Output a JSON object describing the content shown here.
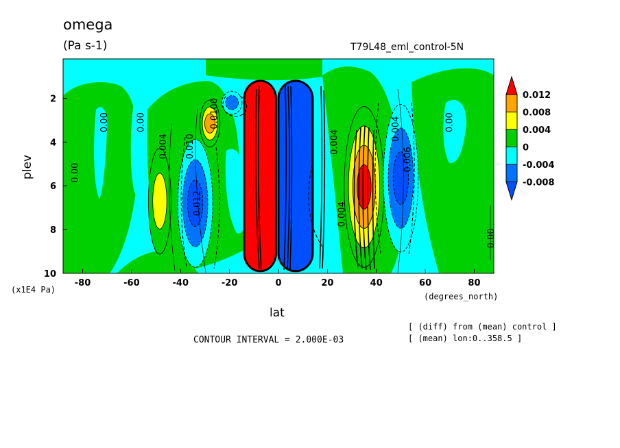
{
  "chart_data": {
    "type": "heatmap",
    "title": "omega",
    "units": "(Pa s-1)",
    "dataset": "T79L48_eml_control-5N",
    "xlabel": "lat",
    "x_unit_label": "(degrees_north)",
    "ylabel": "plev",
    "y_unit_label": "(x1E4 Pa)",
    "xlim": [
      -88,
      88
    ],
    "ylim": [
      10,
      0.2
    ],
    "x_ticks": [
      -80,
      -60,
      -40,
      -20,
      0,
      20,
      40,
      60,
      80
    ],
    "x_tick_labels": [
      "-80",
      "-60",
      "-40",
      "-20",
      "0",
      "20",
      "40",
      "60",
      "80"
    ],
    "y_ticks": [
      2,
      4,
      6,
      8,
      10
    ],
    "y_tick_labels": [
      "2",
      "4",
      "6",
      "8",
      "10"
    ],
    "contour_interval_text": "CONTOUR INTERVAL = 2.000E-03",
    "info_lines": [
      "[ (diff) from (mean) control ]",
      "[ (mean) lon:0..358.5 ]"
    ],
    "colorbar": {
      "labels": [
        "0.012",
        "0.008",
        "0.004",
        "0",
        "-0.004",
        "-0.008"
      ],
      "colors": [
        "#ff0000",
        "#ffa500",
        "#ffff00",
        "#00d000",
        "#00ffff",
        "#0073ff",
        "#0050ff"
      ]
    },
    "contour_labels": [
      {
        "text": "0.00",
        "lat": -83,
        "plev": 5.4,
        "rot": -90
      },
      {
        "text": "0.00",
        "lat": -71,
        "plev": 3.1,
        "rot": -90
      },
      {
        "text": "0.00",
        "lat": -56,
        "plev": 3.1,
        "rot": -90
      },
      {
        "text": "0.004",
        "lat": -47,
        "plev": 4.2,
        "rot": -90
      },
      {
        "text": "0.010",
        "lat": -36,
        "plev": 4.2,
        "rot": -90
      },
      {
        "text": "0.012",
        "lat": -33,
        "plev": 6.8,
        "rot": -90
      },
      {
        "text": "0.0100",
        "lat": -26,
        "plev": 2.7,
        "rot": -90
      },
      {
        "text": "0.004",
        "lat": 23,
        "plev": 4.0,
        "rot": -90
      },
      {
        "text": "0.004",
        "lat": 26,
        "plev": 7.3,
        "rot": -90
      },
      {
        "text": "0.004",
        "lat": 48,
        "plev": 3.4,
        "rot": -90
      },
      {
        "text": "0.006",
        "lat": 53,
        "plev": 4.8,
        "rot": -90
      },
      {
        "text": "0.00",
        "lat": 70,
        "plev": 3.1,
        "rot": -90
      },
      {
        "text": "0.00",
        "lat": 87,
        "plev": 8.4,
        "rot": -90
      }
    ],
    "regions": [
      {
        "lat0": -14,
        "lat1": -1,
        "p0": 1.2,
        "p1": 9.9,
        "level": 0.014,
        "name": "strong ascent band"
      },
      {
        "lat0": 0,
        "lat1": 14,
        "p0": 1.2,
        "p1": 9.9,
        "level": -0.014,
        "name": "strong descent band"
      },
      {
        "lat0": 28,
        "lat1": 42,
        "p0": 2.5,
        "p1": 9.6,
        "level": 0.012
      },
      {
        "lat0": 44,
        "lat1": 56,
        "p0": 2.4,
        "p1": 8.9,
        "level": -0.008
      },
      {
        "lat0": -52,
        "lat1": -45,
        "p0": 4.4,
        "p1": 9.0,
        "level": 0.004
      },
      {
        "lat0": -40,
        "lat1": -28,
        "p0": 4.0,
        "p1": 9.6,
        "level": -0.008
      },
      {
        "lat0": -31,
        "lat1": -25,
        "p0": 2.2,
        "p1": 4.1,
        "level": 0.008
      },
      {
        "lat0": -22,
        "lat1": -16,
        "p0": 1.8,
        "p1": 2.6,
        "level": -0.004
      }
    ]
  }
}
